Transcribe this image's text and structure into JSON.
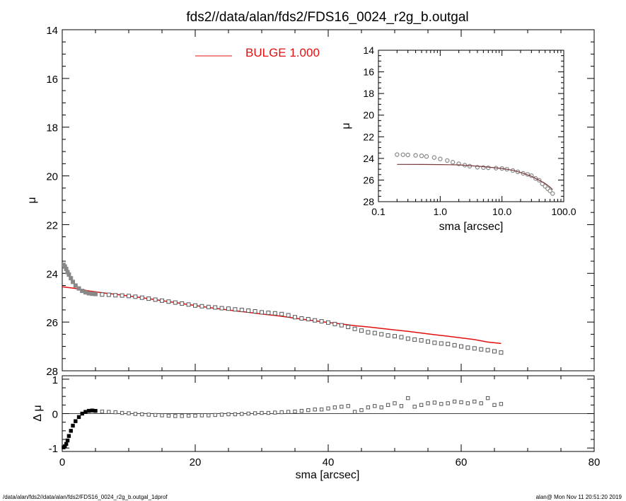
{
  "title": "fds2//data/alan/fds2/FDS16_0024_r2g_b.outgal",
  "footer": {
    "left": "/data/alan/fds2//data/alan/fds2/FDS16_0024_r2g_b.outgal_1dprof",
    "right": "alan@  Mon Nov 11 20:51:20 2019"
  },
  "colors": {
    "model": "#e01010",
    "data_main": "#555555",
    "data_inner": "#888888",
    "inset_model": "#7a3a3a"
  },
  "chart_data": [
    {
      "id": "main-profile",
      "type": "scatter",
      "xlabel": "sma [arcsec]",
      "ylabel": "μ",
      "xlim": [
        0,
        80
      ],
      "ylim": [
        28,
        14
      ],
      "y_inverted": true,
      "xticks": [
        0,
        20,
        40,
        60,
        80
      ],
      "yticks": [
        14,
        16,
        18,
        20,
        22,
        24,
        26,
        28
      ],
      "x_minor_step": 5,
      "y_minor_step": 0.5,
      "legend": {
        "label": "BULGE  1.000",
        "color": "#e01010",
        "placement": "top-center"
      },
      "series": [
        {
          "name": "BULGE  1.000",
          "style": "line",
          "x": [
            0,
            2,
            4,
            6,
            8,
            10,
            12,
            14,
            16,
            18,
            20,
            22,
            24,
            26,
            28,
            30,
            32,
            34,
            36,
            38,
            40,
            42,
            44,
            46,
            48,
            50,
            52,
            54,
            56,
            58,
            60,
            62,
            64,
            66
          ],
          "y": [
            24.55,
            24.62,
            24.72,
            24.8,
            24.86,
            24.93,
            25.0,
            25.08,
            25.16,
            25.24,
            25.32,
            25.4,
            25.47,
            25.54,
            25.6,
            25.67,
            25.73,
            25.8,
            25.88,
            25.95,
            26.02,
            26.08,
            26.15,
            26.2,
            26.26,
            26.32,
            26.38,
            26.45,
            26.52,
            26.58,
            26.65,
            26.72,
            26.82,
            26.88
          ]
        },
        {
          "style": "markers",
          "x": [
            0.2,
            0.4,
            0.6,
            0.8,
            1.0,
            1.3,
            1.6,
            2.0,
            2.5,
            3.0,
            3.5,
            4.0,
            4.5,
            5.0,
            6.0,
            7.0,
            8.0,
            9.0,
            10,
            11,
            12,
            13,
            14,
            15,
            16,
            17,
            18,
            19,
            20,
            21,
            22,
            23,
            24,
            25,
            26,
            27,
            28,
            29,
            30,
            31,
            32,
            33,
            34,
            35,
            36,
            37,
            38,
            39,
            40,
            41,
            42,
            43,
            44,
            45,
            46,
            47,
            48,
            49,
            50,
            51,
            52,
            53,
            54,
            55,
            56,
            57,
            58,
            59,
            60,
            61,
            62,
            63,
            64,
            65,
            66
          ],
          "y": [
            23.65,
            23.72,
            23.82,
            23.95,
            24.05,
            24.2,
            24.35,
            24.5,
            24.62,
            24.72,
            24.78,
            24.82,
            24.84,
            24.85,
            24.87,
            24.88,
            24.9,
            24.91,
            24.93,
            24.96,
            25.0,
            25.04,
            25.08,
            25.12,
            25.16,
            25.2,
            25.24,
            25.28,
            25.32,
            25.35,
            25.38,
            25.4,
            25.43,
            25.45,
            25.48,
            25.5,
            25.53,
            25.56,
            25.6,
            25.62,
            25.64,
            25.67,
            25.72,
            25.8,
            25.85,
            25.88,
            25.93,
            25.97,
            26.02,
            26.08,
            26.13,
            26.2,
            26.28,
            26.35,
            26.42,
            26.45,
            26.5,
            26.55,
            26.58,
            26.62,
            26.68,
            26.72,
            26.75,
            26.8,
            26.85,
            26.88,
            26.9,
            26.95,
            27.0,
            27.05,
            27.08,
            27.12,
            27.15,
            27.2,
            27.25
          ]
        }
      ]
    },
    {
      "id": "residual-panel",
      "type": "scatter",
      "xlabel": "sma [arcsec]",
      "ylabel": "Δ μ",
      "xlim": [
        0,
        80
      ],
      "ylim": [
        -1.1,
        1.1
      ],
      "xticks": [
        0,
        20,
        40,
        60,
        80
      ],
      "yticks": [
        -1,
        0,
        1
      ],
      "x_minor_step": 5,
      "zero_line": true,
      "series": [
        {
          "style": "markers",
          "x": [
            0.2,
            0.4,
            0.6,
            0.8,
            1.0,
            1.3,
            1.6,
            2.0,
            2.5,
            3.0,
            3.5,
            4.0,
            4.5,
            5.0,
            6.0,
            7.0,
            8.0,
            9.0,
            10,
            11,
            12,
            13,
            14,
            15,
            16,
            17,
            18,
            19,
            20,
            21,
            22,
            23,
            24,
            25,
            26,
            27,
            28,
            29,
            30,
            31,
            32,
            33,
            34,
            35,
            36,
            37,
            38,
            39,
            40,
            41,
            42,
            43,
            44,
            45,
            46,
            47,
            48,
            49,
            50,
            51,
            52,
            53,
            54,
            55,
            56,
            57,
            58,
            59,
            60,
            61,
            62,
            63,
            64,
            65,
            66
          ],
          "y": [
            -0.98,
            -0.95,
            -0.88,
            -0.78,
            -0.65,
            -0.5,
            -0.35,
            -0.22,
            -0.1,
            0.0,
            0.05,
            0.08,
            0.09,
            0.08,
            0.06,
            0.05,
            0.04,
            0.02,
            0.01,
            -0.01,
            -0.02,
            -0.03,
            -0.04,
            -0.05,
            -0.06,
            -0.07,
            -0.07,
            -0.06,
            -0.06,
            -0.05,
            -0.05,
            -0.04,
            -0.03,
            -0.02,
            -0.02,
            -0.01,
            0.0,
            0.01,
            0.02,
            0.02,
            0.03,
            0.04,
            0.05,
            0.06,
            0.08,
            0.1,
            0.12,
            0.12,
            0.15,
            0.18,
            0.2,
            0.22,
            0.05,
            0.1,
            0.18,
            0.22,
            0.18,
            0.25,
            0.3,
            0.22,
            0.45,
            0.2,
            0.25,
            0.3,
            0.32,
            0.28,
            0.3,
            0.35,
            0.33,
            0.3,
            0.35,
            0.3,
            0.45,
            0.25,
            0.28
          ]
        }
      ]
    },
    {
      "id": "inset-log-profile",
      "type": "scatter",
      "xlabel": "sma [arcsec]",
      "ylabel": "μ",
      "x_scale": "log",
      "xlim": [
        0.1,
        100
      ],
      "ylim": [
        28,
        14
      ],
      "y_inverted": true,
      "xtick_labels": [
        "0.1",
        "1.0",
        "10.0",
        "100.0"
      ],
      "xticks": [
        0.1,
        1,
        10,
        100
      ],
      "yticks": [
        14,
        16,
        18,
        20,
        22,
        24,
        26,
        28
      ],
      "series": [
        {
          "style": "line",
          "x": [
            0.2,
            0.5,
            1,
            2,
            4,
            6,
            10,
            15,
            20,
            30,
            40,
            50,
            60,
            66
          ],
          "y": [
            24.55,
            24.56,
            24.57,
            24.6,
            24.72,
            24.8,
            24.93,
            25.1,
            25.3,
            25.65,
            26.02,
            26.32,
            26.65,
            26.88
          ]
        },
        {
          "style": "markers",
          "x": [
            0.2,
            0.25,
            0.3,
            0.4,
            0.5,
            0.6,
            0.8,
            1.0,
            1.3,
            1.6,
            2.0,
            2.5,
            3.0,
            4.0,
            5.0,
            6.0,
            8.0,
            10,
            12,
            15,
            18,
            22,
            26,
            30,
            35,
            40,
            45,
            50,
            55,
            60,
            66
          ],
          "y": [
            23.65,
            23.66,
            23.68,
            23.72,
            23.76,
            23.82,
            23.92,
            24.05,
            24.2,
            24.35,
            24.5,
            24.62,
            24.72,
            24.82,
            24.85,
            24.87,
            24.9,
            24.93,
            25.0,
            25.12,
            25.24,
            25.38,
            25.48,
            25.6,
            25.85,
            26.02,
            26.35,
            26.58,
            26.8,
            27.0,
            27.25
          ]
        }
      ]
    }
  ]
}
